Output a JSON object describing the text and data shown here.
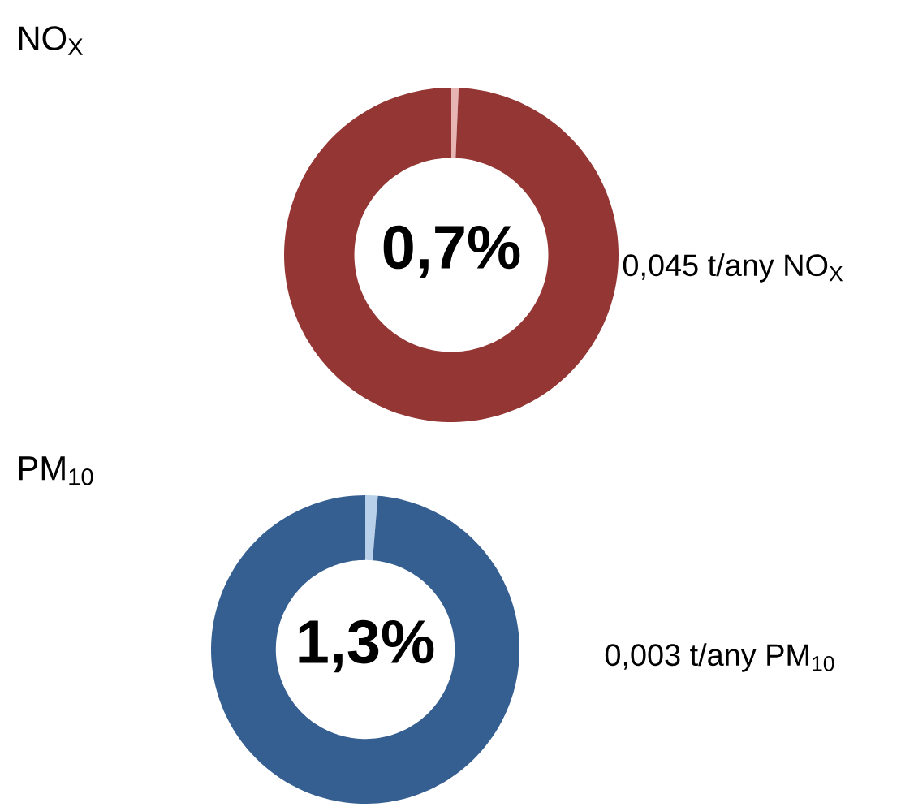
{
  "chart_data": [
    {
      "type": "donut",
      "title": "NO$_{X}$",
      "categories": [
        null,
        null
      ],
      "values": [
        0.7,
        99.3
      ],
      "colors": [
        "#e8b5b5",
        "#943634"
      ],
      "annotations": [
        "0,7%",
        "0,045 t/any NO$_{X}$"
      ]
    },
    {
      "type": "donut",
      "title": "PM$_{10}$",
      "categories": [
        null,
        null
      ],
      "values": [
        1.3,
        98.7
      ],
      "colors": [
        "#b9d0ea",
        "#365f91"
      ],
      "annotations": [
        "1,3%",
        "0,003 t/any PM$_{10}$"
      ]
    }
  ]
}
